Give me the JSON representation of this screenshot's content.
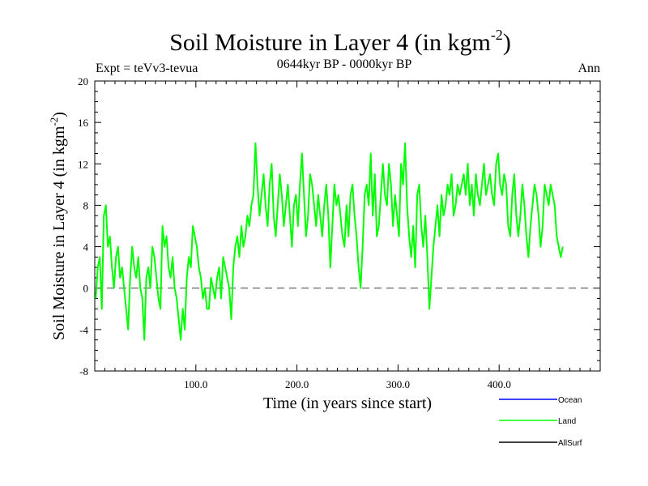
{
  "chart_data": {
    "type": "line",
    "title_main": "Soil Moisture in Layer 4 (in kgm",
    "title_sup": "-2",
    "title_close": ")",
    "subtitle": "0644kyr BP - 0000kyr BP",
    "expt_label": "Expt = teVv3-tevua",
    "period_label": "Ann",
    "xlabel": "Time (in years since start)",
    "ylabel_main": "Soil Moisture in Layer 4 (in kgm",
    "ylabel_sup": "-2",
    "ylabel_close": ")",
    "xlim": [
      0,
      500
    ],
    "ylim": [
      -8,
      20
    ],
    "x_ticks": [
      {
        "value": 100,
        "label": "100.0"
      },
      {
        "value": 200,
        "label": "200.0"
      },
      {
        "value": 300,
        "label": "300.0"
      },
      {
        "value": 400,
        "label": "400.0"
      }
    ],
    "y_ticks": [
      {
        "value": -8,
        "label": "-8"
      },
      {
        "value": -4,
        "label": "-4"
      },
      {
        "value": 0,
        "label": "0"
      },
      {
        "value": 4,
        "label": "4"
      },
      {
        "value": 8,
        "label": "8"
      },
      {
        "value": 12,
        "label": "12"
      },
      {
        "value": 16,
        "label": "16"
      },
      {
        "value": 20,
        "label": "20"
      }
    ],
    "reference_line": 0,
    "legend": [
      {
        "name": "Ocean",
        "color": "#0000ff"
      },
      {
        "name": "Land",
        "color": "#00ff00"
      },
      {
        "name": "AllSurf",
        "color": "#000000"
      }
    ],
    "series": [
      {
        "name": "Land",
        "color": "#00ff00",
        "x_start": 1,
        "x_step": 2,
        "values": [
          -1,
          2,
          3,
          -2,
          7,
          8,
          4,
          5,
          2,
          0,
          3,
          4,
          1,
          2,
          0,
          -2,
          -4,
          1,
          4,
          2,
          1,
          3,
          0,
          -1,
          -5,
          1,
          2,
          0,
          4,
          3,
          1,
          -1,
          -2,
          6,
          4,
          5,
          2,
          1,
          3,
          0,
          -1,
          -3,
          -5,
          -2,
          -4,
          1,
          3,
          2,
          6,
          5,
          4,
          2,
          1,
          -1,
          0,
          -2,
          -2,
          1,
          0,
          -1,
          1,
          2,
          -1,
          3,
          2,
          1,
          0,
          -3,
          2,
          4,
          5,
          3,
          6,
          4,
          5,
          7,
          6,
          8,
          9,
          14,
          10,
          7,
          9,
          11,
          8,
          6,
          10,
          12,
          7,
          5,
          8,
          11,
          9,
          6,
          8,
          10,
          7,
          4,
          8,
          9,
          6,
          10,
          13,
          9,
          5,
          7,
          11,
          10,
          8,
          6,
          9,
          7,
          5,
          8,
          10,
          7,
          2,
          6,
          10,
          8,
          9,
          7,
          5,
          4,
          8,
          5,
          9,
          10,
          7,
          5,
          2,
          0,
          4,
          9,
          10,
          8,
          13,
          7,
          11,
          5,
          6,
          9,
          12,
          9,
          8,
          12,
          10,
          6,
          9,
          7,
          5,
          12,
          10,
          14,
          8,
          5,
          3,
          6,
          2,
          9,
          10,
          6,
          4,
          7,
          3,
          -2,
          1,
          4,
          6,
          8,
          5,
          9,
          7,
          8,
          10,
          9,
          11,
          7,
          8,
          10,
          9,
          10,
          11,
          9,
          12,
          8,
          10,
          7,
          11,
          9,
          8,
          10,
          12,
          9,
          10,
          11,
          9,
          8,
          12,
          13,
          10,
          9,
          11,
          10,
          6,
          5,
          9,
          11,
          7,
          5,
          7,
          10,
          8,
          5,
          3,
          6,
          8,
          10,
          9,
          7,
          4,
          6,
          10,
          9,
          8,
          10,
          9,
          8,
          5,
          4,
          3,
          4
        ]
      }
    ]
  }
}
